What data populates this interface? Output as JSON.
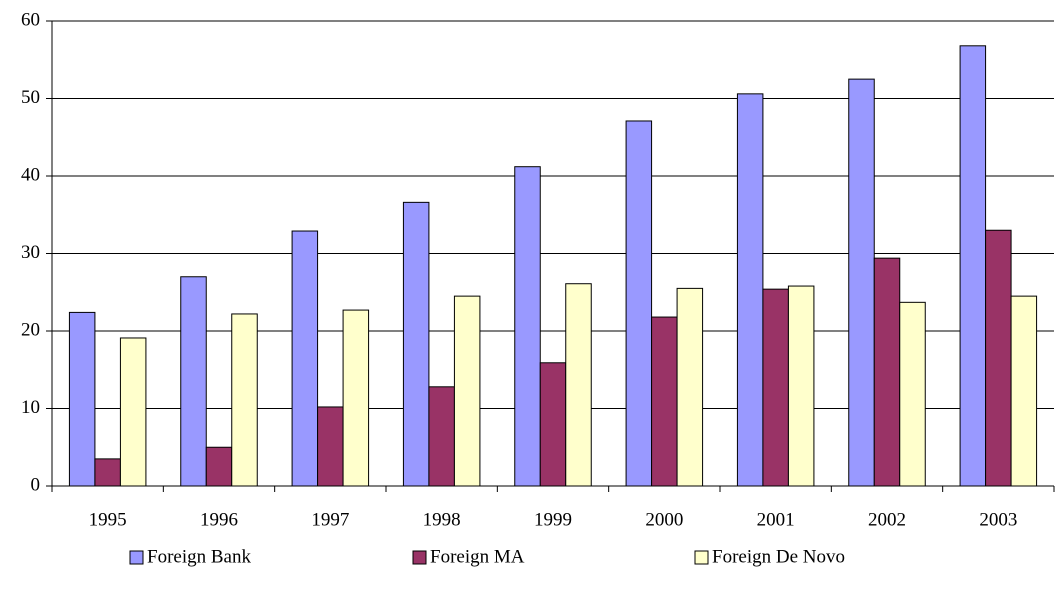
{
  "chart_data": {
    "type": "bar",
    "categories": [
      "1995",
      "1996",
      "1997",
      "1998",
      "1999",
      "2000",
      "2001",
      "2002",
      "2003"
    ],
    "series": [
      {
        "name": "Foreign Bank",
        "color": "#9999ff",
        "values": [
          22.4,
          27.0,
          32.9,
          36.6,
          41.2,
          47.1,
          50.6,
          52.5,
          56.8
        ]
      },
      {
        "name": "Foreign MA",
        "color": "#993366",
        "values": [
          3.5,
          5.0,
          10.2,
          12.8,
          15.9,
          21.8,
          25.4,
          29.4,
          33.0
        ]
      },
      {
        "name": "Foreign De Novo",
        "color": "#ffffcc",
        "values": [
          19.1,
          22.2,
          22.7,
          24.5,
          26.1,
          25.5,
          25.8,
          23.7,
          24.5
        ]
      }
    ],
    "ylim": [
      0,
      60
    ],
    "yticks": [
      0,
      10,
      20,
      30,
      40,
      50,
      60
    ],
    "grid": true,
    "legend": "bottom"
  }
}
